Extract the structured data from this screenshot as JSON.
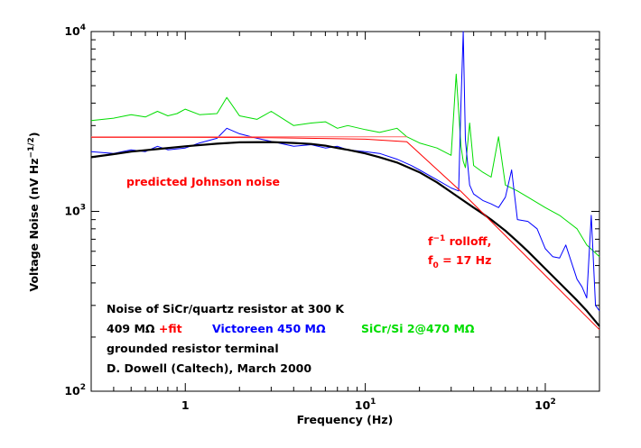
{
  "chart_data": {
    "type": "line",
    "title": "",
    "xlabel": "Frequency (Hz)",
    "ylabel": "Voltage Noise (nV Hz^-1/2)",
    "ylabel_parts": {
      "pre": "Voltage Noise (nV Hz",
      "sup": "−1/2",
      "post": ")"
    },
    "x_scale": "log",
    "y_scale": "log",
    "xlim": [
      0.3,
      200
    ],
    "ylim": [
      100,
      10000
    ],
    "grid": false,
    "x_ticks": [
      {
        "value": 1,
        "label": "1"
      },
      {
        "value": 10,
        "label": "10",
        "sup": "1"
      },
      {
        "value": 100,
        "label": "10",
        "sup": "2"
      }
    ],
    "y_ticks": [
      {
        "value": 100,
        "label": "10",
        "sup": "2"
      },
      {
        "value": 1000,
        "label": "10",
        "sup": "3"
      },
      {
        "value": 10000,
        "label": "10",
        "sup": "4"
      }
    ],
    "series": [
      {
        "name": "SiCr/Si 2@470 MΩ",
        "color": "#00dd00",
        "x": [
          0.3,
          0.4,
          0.5,
          0.6,
          0.7,
          0.8,
          0.9,
          1.0,
          1.2,
          1.5,
          1.7,
          2,
          2.5,
          3,
          4,
          5,
          6,
          7,
          8,
          10,
          12,
          15,
          17,
          20,
          25,
          30,
          32,
          34,
          35,
          36,
          38,
          40,
          45,
          50,
          55,
          60,
          70,
          80,
          100,
          120,
          150,
          170,
          200
        ],
        "y": [
          3200,
          3300,
          3450,
          3350,
          3600,
          3400,
          3500,
          3700,
          3450,
          3500,
          4300,
          3400,
          3250,
          3600,
          3000,
          3100,
          3150,
          2900,
          3000,
          2850,
          2750,
          2900,
          2600,
          2400,
          2250,
          2050,
          5800,
          2300,
          1900,
          1750,
          3100,
          1800,
          1650,
          1550,
          2600,
          1400,
          1300,
          1200,
          1050,
          950,
          800,
          650,
          560
        ]
      },
      {
        "name": "Victoreen 450 MΩ",
        "color": "#0000ff",
        "x": [
          0.3,
          0.4,
          0.5,
          0.6,
          0.7,
          0.8,
          1.0,
          1.2,
          1.5,
          1.7,
          2,
          2.5,
          3,
          4,
          5,
          6,
          7,
          8,
          10,
          12,
          15,
          18,
          20,
          25,
          30,
          33,
          34,
          35,
          36,
          38,
          40,
          45,
          50,
          55,
          60,
          65,
          70,
          80,
          90,
          100,
          110,
          120,
          130,
          150,
          160,
          170,
          180,
          190,
          200
        ],
        "y": [
          2150,
          2100,
          2200,
          2150,
          2300,
          2200,
          2250,
          2400,
          2550,
          2900,
          2700,
          2550,
          2450,
          2300,
          2350,
          2250,
          2300,
          2200,
          2150,
          2100,
          1950,
          1800,
          1700,
          1500,
          1350,
          1300,
          4000,
          10000,
          2500,
          1400,
          1250,
          1150,
          1100,
          1050,
          1200,
          1700,
          900,
          880,
          800,
          620,
          560,
          550,
          650,
          420,
          380,
          330,
          950,
          300,
          280
        ]
      },
      {
        "name": "409 MΩ",
        "color": "#000000",
        "x": [
          0.3,
          0.4,
          0.5,
          0.7,
          1.0,
          1.5,
          2.0,
          3.0,
          4.0,
          5.0,
          6.0,
          7.0,
          8.0,
          10,
          12,
          15,
          20,
          25,
          30,
          35,
          40,
          45,
          50,
          60,
          70,
          80,
          100,
          120,
          150,
          170,
          200
        ],
        "y": [
          2000,
          2080,
          2150,
          2220,
          2300,
          2380,
          2420,
          2430,
          2400,
          2370,
          2320,
          2250,
          2200,
          2100,
          2000,
          1870,
          1650,
          1450,
          1280,
          1150,
          1050,
          970,
          900,
          780,
          680,
          600,
          480,
          400,
          320,
          280,
          230
        ]
      },
      {
        "name": "+fit",
        "color": "#ff0000",
        "x": [
          0.3,
          1,
          3,
          10,
          17,
          34,
          50,
          100,
          200
        ],
        "y": [
          2580,
          2580,
          2570,
          2520,
          2440,
          1290,
          880,
          440,
          220
        ]
      },
      {
        "name": "predicted Johnson noise",
        "color": "#ff6666",
        "x": [
          0.3,
          17
        ],
        "y": [
          2600,
          2600
        ]
      }
    ],
    "annotations": [
      {
        "id": "johnson",
        "text": "predicted Johnson noise",
        "color": "#ff0000"
      },
      {
        "id": "rolloff1",
        "pre": "f",
        "sup": "−1",
        "post": " rolloff,",
        "color": "#ff0000"
      },
      {
        "id": "rolloff2",
        "pre": "f",
        "sub": "0",
        "post": " = 17 Hz",
        "color": "#ff0000"
      }
    ],
    "legend": {
      "title": "Noise of SiCr/quartz resistor at 300 K",
      "entries": [
        {
          "parts": [
            {
              "text": "409 MΩ ",
              "color": "#000000"
            },
            {
              "text": "+fit",
              "color": "#ff0000"
            }
          ]
        },
        {
          "parts": [
            {
              "text": "Victoreen 450 MΩ",
              "color": "#0000ff"
            }
          ]
        },
        {
          "parts": [
            {
              "text": "SiCr/Si 2@470 MΩ",
              "color": "#00dd00"
            }
          ]
        }
      ],
      "note1": "grounded resistor terminal",
      "note2": "D. Dowell (Caltech), March 2000"
    }
  }
}
